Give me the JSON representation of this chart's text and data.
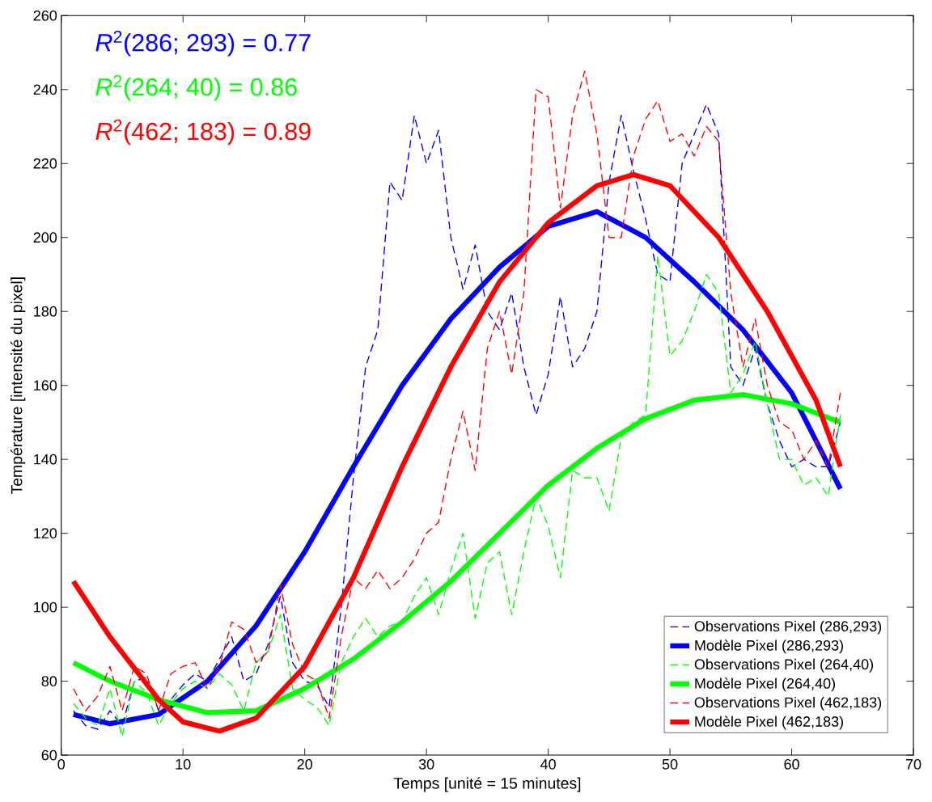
{
  "chart_data": {
    "type": "line",
    "xlabel": "Temps [unité = 15 minutes]",
    "ylabel": "Température [intensité du pixel]",
    "x": [
      1,
      2,
      3,
      4,
      5,
      6,
      7,
      8,
      9,
      10,
      11,
      12,
      13,
      14,
      15,
      16,
      17,
      18,
      19,
      20,
      21,
      22,
      23,
      24,
      25,
      26,
      27,
      28,
      29,
      30,
      31,
      32,
      33,
      34,
      35,
      36,
      37,
      38,
      39,
      40,
      41,
      42,
      43,
      44,
      45,
      46,
      47,
      48,
      49,
      50,
      51,
      52,
      53,
      54,
      55,
      56,
      57,
      58,
      59,
      60,
      61,
      62,
      63,
      64
    ],
    "xlim": [
      0,
      70
    ],
    "ylim": [
      60,
      260
    ],
    "xticks": [
      0,
      10,
      20,
      30,
      40,
      50,
      60,
      70
    ],
    "yticks": [
      60,
      80,
      100,
      120,
      140,
      160,
      180,
      200,
      220,
      240,
      260
    ],
    "grid": false,
    "legend": "bottom right",
    "annotations": [
      "*R*$^{2}$(286; 293) = 0.77",
      "*R*$^{2}$(264; 40) = 0.86",
      "*R*$^{2}$(462; 183) = 0.89"
    ],
    "series": [
      {
        "name": "Observations Pixel (286,293)",
        "color": "#0000ff",
        "line_style": "dashed",
        "values": [
          72,
          68,
          67,
          72,
          68,
          80,
          81,
          72,
          75,
          79,
          82,
          80,
          86,
          92,
          80,
          82,
          90,
          103,
          85,
          80,
          79,
          73,
          100,
          135,
          165,
          175,
          215,
          210,
          233,
          220,
          229,
          200,
          186,
          198,
          180,
          175,
          185,
          165,
          152,
          163,
          184,
          165,
          170,
          180,
          215,
          233,
          218,
          205,
          190,
          188,
          220,
          228,
          236,
          228,
          165,
          160,
          170,
          155,
          145,
          138,
          140,
          138,
          138,
          150
        ]
      },
      {
        "name": "Modèle Pixel (286,293)",
        "color": "#0000ff",
        "line_style": "solid",
        "x": [
          1,
          4,
          8,
          12,
          16,
          20,
          24,
          28,
          32,
          36,
          40,
          44,
          48,
          52,
          56,
          60,
          64
        ],
        "values": [
          71,
          68.5,
          71,
          80,
          95,
          115,
          138,
          160,
          178,
          192,
          203,
          207,
          200,
          188,
          175,
          158,
          132
        ]
      },
      {
        "name": "Observations Pixel (264,40)",
        "color": "#00ff00",
        "line_style": "dashed",
        "values": [
          74,
          70,
          68,
          78,
          65,
          80,
          77,
          68,
          74,
          78,
          80,
          78,
          82,
          79,
          72,
          85,
          88,
          98,
          78,
          75,
          73,
          68,
          85,
          92,
          97,
          92,
          95,
          96,
          103,
          108,
          98,
          110,
          120,
          97,
          112,
          115,
          98,
          115,
          130,
          122,
          108,
          137,
          135,
          135,
          126,
          146,
          150,
          152,
          195,
          168,
          172,
          180,
          190,
          185,
          158,
          163,
          172,
          155,
          140,
          140,
          133,
          135,
          130,
          152
        ]
      },
      {
        "name": "Modèle Pixel (264,40)",
        "color": "#00ff00",
        "line_style": "solid",
        "x": [
          1,
          4,
          8,
          12,
          16,
          20,
          24,
          28,
          32,
          36,
          40,
          44,
          48,
          52,
          56,
          60,
          64
        ],
        "values": [
          85,
          80,
          75,
          71.5,
          72,
          78,
          86,
          96,
          107,
          120,
          133,
          143,
          151,
          156,
          157.5,
          155,
          150
        ]
      },
      {
        "name": "Observations Pixel (462,183)",
        "color": "#ff0000",
        "line_style": "dashed",
        "values": [
          78,
          72,
          76,
          84,
          72,
          84,
          82,
          72,
          82,
          84,
          85,
          78,
          84,
          96,
          94,
          85,
          88,
          106,
          90,
          82,
          80,
          70,
          92,
          108,
          105,
          110,
          105,
          108,
          113,
          120,
          123,
          140,
          153,
          137,
          170,
          180,
          163,
          185,
          240,
          238,
          208,
          233,
          245,
          228,
          200,
          200,
          222,
          232,
          237,
          226,
          228,
          222,
          230,
          226,
          185,
          165,
          178,
          160,
          150,
          148,
          140,
          145,
          138,
          158
        ]
      },
      {
        "name": "Modèle Pixel (462,183)",
        "color": "#ff0000",
        "line_style": "solid",
        "x": [
          1,
          4,
          8,
          10,
          13,
          16,
          20,
          24,
          28,
          32,
          36,
          40,
          44,
          47,
          50,
          54,
          58,
          62,
          64
        ],
        "values": [
          107,
          92,
          75,
          69,
          66.5,
          70,
          84,
          108,
          138,
          165,
          188,
          204,
          214,
          217,
          214,
          200,
          180,
          156,
          138
        ]
      }
    ]
  }
}
